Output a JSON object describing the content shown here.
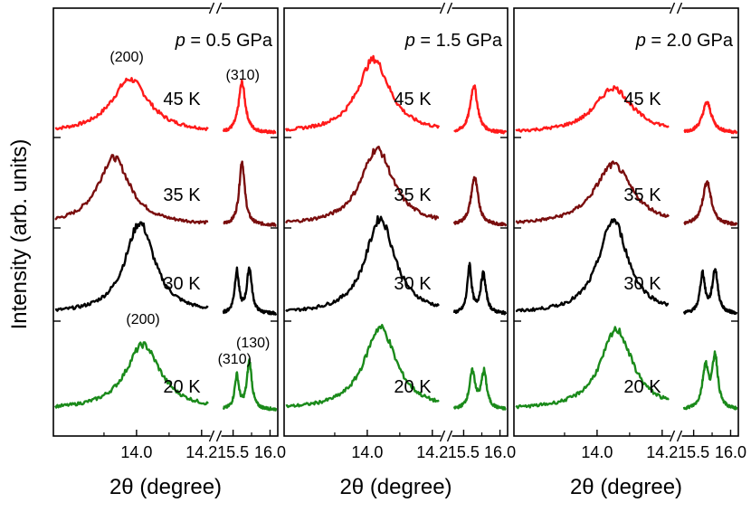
{
  "colors": {
    "20 K": "#1a8a1a",
    "30 K": "#000000",
    "35 K": "#7a0e0e",
    "45 K": "#ff1a1a",
    "axis": "#000000"
  },
  "ylabel": "Intensity (arb. units)",
  "xlabel": "2θ (degree)",
  "peak_labels": {
    "top_left": "(200)",
    "top_right": "(310)",
    "bottom_200": "(200)",
    "bottom_310": "(310)",
    "bottom_130": "(130)"
  },
  "chart_data": [
    {
      "type": "line",
      "panel_label": "p = 0.5 GPa",
      "pressure_symbol": "p",
      "pressure_value": "= 0.5 GPa",
      "xlabel": "2θ (degree)",
      "x_ticks": [
        "14.0",
        "14.2",
        "15.5",
        "16.0"
      ],
      "x_segments": [
        [
          13.75,
          14.22
        ],
        [
          15.37,
          16.08
        ]
      ],
      "ylabel": "Intensity (arb. units)",
      "series": [
        {
          "name": "45 K",
          "baseline": 3,
          "peaks": [
            {
              "x": 13.98,
              "h": 0.62,
              "w": 0.07
            },
            {
              "x": 15.62,
              "h": 0.58,
              "w": 0.055
            }
          ]
        },
        {
          "name": "35 K",
          "baseline": 2,
          "peaks": [
            {
              "x": 13.93,
              "h": 0.78,
              "w": 0.06
            },
            {
              "x": 15.62,
              "h": 0.74,
              "w": 0.045
            }
          ]
        },
        {
          "name": "30 K",
          "baseline": 1,
          "peaks": [
            {
              "x": 14.01,
              "h": 1.05,
              "w": 0.055
            },
            {
              "x": 15.55,
              "h": 0.48,
              "w": 0.035
            },
            {
              "x": 15.72,
              "h": 0.52,
              "w": 0.04
            }
          ]
        },
        {
          "name": "20 K",
          "baseline": 0,
          "peaks": [
            {
              "x": 14.02,
              "h": 0.75,
              "w": 0.065
            },
            {
              "x": 15.55,
              "h": 0.38,
              "w": 0.035
            },
            {
              "x": 15.72,
              "h": 0.55,
              "w": 0.04
            }
          ]
        }
      ]
    },
    {
      "type": "line",
      "panel_label": "p = 1.5 GPa",
      "pressure_symbol": "p",
      "pressure_value": "= 1.5 GPa",
      "xlabel": "2θ (degree)",
      "x_ticks": [
        "14.0",
        "14.2",
        "15.5",
        "16.0"
      ],
      "x_segments": [
        [
          13.75,
          14.22
        ],
        [
          15.37,
          16.08
        ]
      ],
      "series": [
        {
          "name": "45 K",
          "baseline": 3,
          "peaks": [
            {
              "x": 14.02,
              "h": 0.85,
              "w": 0.06
            },
            {
              "x": 15.64,
              "h": 0.55,
              "w": 0.06
            }
          ]
        },
        {
          "name": "35 K",
          "baseline": 2,
          "peaks": [
            {
              "x": 14.03,
              "h": 0.88,
              "w": 0.06
            },
            {
              "x": 15.65,
              "h": 0.55,
              "w": 0.06
            }
          ]
        },
        {
          "name": "30 K",
          "baseline": 1,
          "peaks": [
            {
              "x": 14.04,
              "h": 1.1,
              "w": 0.055
            },
            {
              "x": 15.58,
              "h": 0.55,
              "w": 0.035
            },
            {
              "x": 15.77,
              "h": 0.45,
              "w": 0.045
            }
          ]
        },
        {
          "name": "20 K",
          "baseline": 0,
          "peaks": [
            {
              "x": 14.04,
              "h": 0.95,
              "w": 0.06
            },
            {
              "x": 15.62,
              "h": 0.42,
              "w": 0.05
            },
            {
              "x": 15.78,
              "h": 0.42,
              "w": 0.045
            }
          ]
        }
      ]
    },
    {
      "type": "line",
      "panel_label": "p = 2.0 GPa",
      "pressure_symbol": "p",
      "pressure_value": "= 2.0 GPa",
      "xlabel": "2θ (degree)",
      "x_ticks": [
        "14.0",
        "14.2",
        "15.5",
        "16.0"
      ],
      "x_segments": [
        [
          13.75,
          14.22
        ],
        [
          15.37,
          16.08
        ]
      ],
      "series": [
        {
          "name": "45 K",
          "baseline": 3,
          "peaks": [
            {
              "x": 14.05,
              "h": 0.52,
              "w": 0.07
            },
            {
              "x": 15.68,
              "h": 0.35,
              "w": 0.075
            }
          ]
        },
        {
          "name": "35 K",
          "baseline": 2,
          "peaks": [
            {
              "x": 14.05,
              "h": 0.7,
              "w": 0.07
            },
            {
              "x": 15.68,
              "h": 0.5,
              "w": 0.07
            }
          ]
        },
        {
          "name": "30 K",
          "baseline": 1,
          "peaks": [
            {
              "x": 14.05,
              "h": 1.08,
              "w": 0.055
            },
            {
              "x": 15.62,
              "h": 0.45,
              "w": 0.04
            },
            {
              "x": 15.79,
              "h": 0.5,
              "w": 0.045
            }
          ]
        },
        {
          "name": "20 K",
          "baseline": 0,
          "peaks": [
            {
              "x": 14.06,
              "h": 0.92,
              "w": 0.06
            },
            {
              "x": 15.66,
              "h": 0.48,
              "w": 0.05
            },
            {
              "x": 15.79,
              "h": 0.6,
              "w": 0.045
            }
          ]
        }
      ]
    }
  ]
}
